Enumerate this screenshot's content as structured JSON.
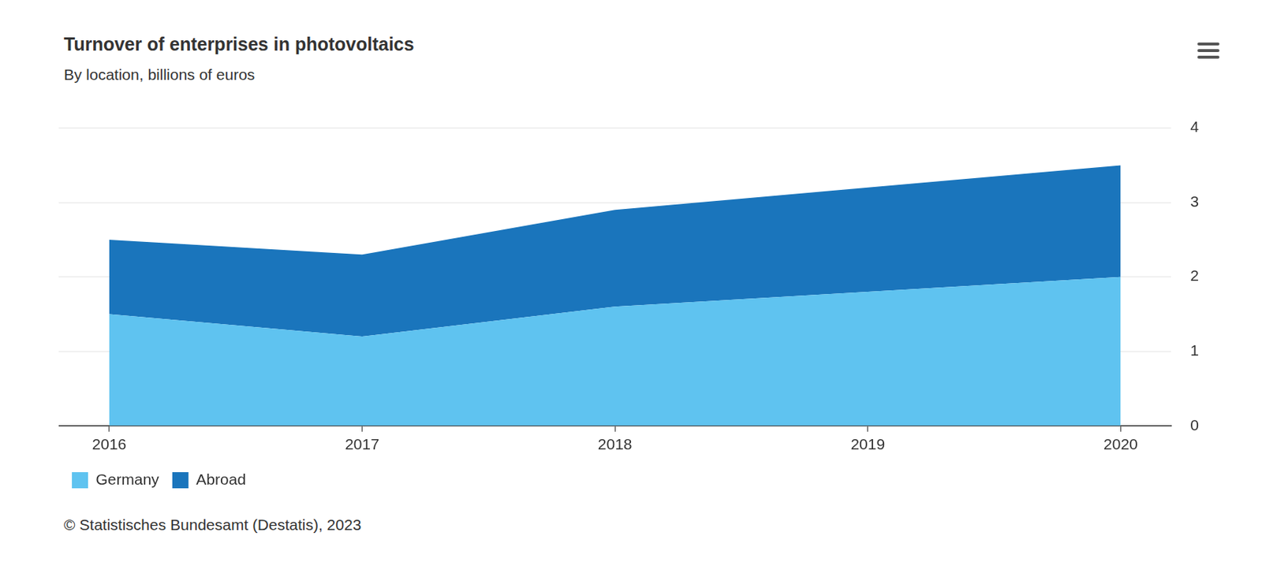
{
  "chart_data": {
    "type": "area",
    "title": "Turnover of enterprises in photovoltaics",
    "subtitle": "By location, billions of euros",
    "source": "© Statistisches Bundesamt (Destatis), 2023",
    "x": [
      2016,
      2017,
      2018,
      2019,
      2020
    ],
    "xlim": [
      2015.8,
      2020.2
    ],
    "xticks": [
      2016,
      2017,
      2018,
      2019,
      2020
    ],
    "series": [
      {
        "name": "Germany",
        "color": "#5fc3f0",
        "values": [
          1.5,
          1.2,
          1.6,
          1.8,
          2.0
        ]
      },
      {
        "name": "Abroad",
        "color": "#1a75bc",
        "values": [
          1.0,
          1.1,
          1.3,
          1.4,
          1.5
        ]
      }
    ],
    "ylim": [
      0,
      4
    ],
    "yticks": [
      0,
      1,
      2,
      3,
      4
    ],
    "stacked": true,
    "grid": true,
    "legend": "bottom-left"
  }
}
